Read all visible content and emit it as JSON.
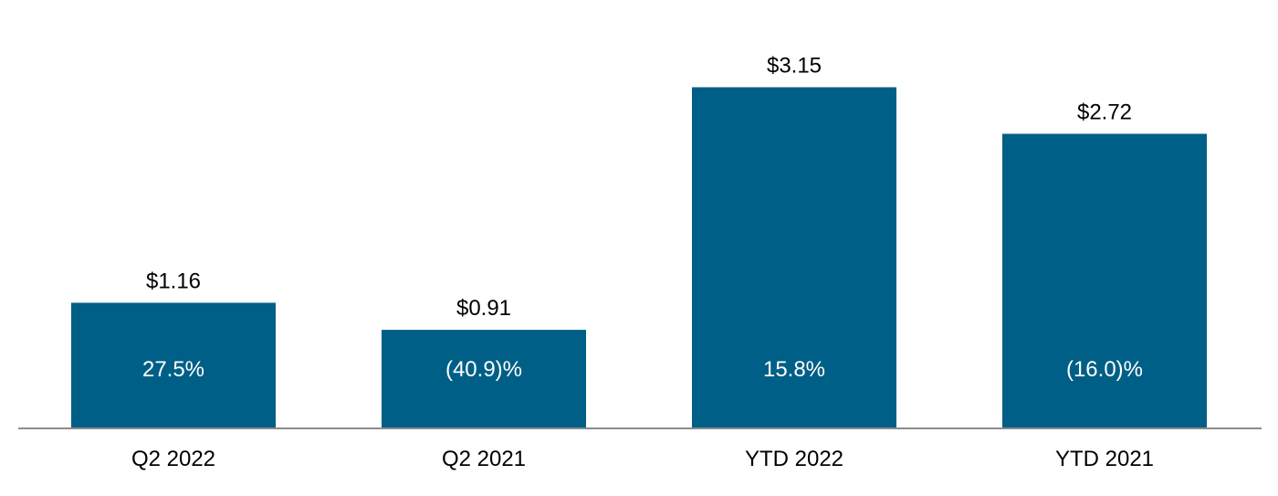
{
  "chart_data": {
    "type": "bar",
    "categories": [
      "Q2 2022",
      "Q2 2021",
      "YTD 2022",
      "YTD 2021"
    ],
    "values": [
      1.16,
      0.91,
      3.15,
      2.72
    ],
    "value_labels": [
      "$1.16",
      "$0.91",
      "$3.15",
      "$2.72"
    ],
    "inner_labels": [
      "27.5%",
      "(40.9)%",
      "15.8%",
      "(16.0)%"
    ],
    "ylim": [
      0,
      3.5
    ],
    "grid": false,
    "legend": "none",
    "bar_color": "#005f86",
    "axis_color": "#8c8c8c",
    "inner_label_color": "#ffffff",
    "label_color": "#000000"
  }
}
